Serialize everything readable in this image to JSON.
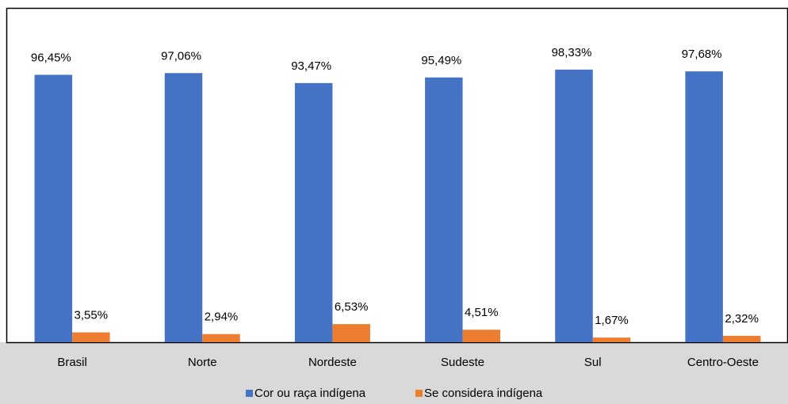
{
  "chart_data": {
    "type": "bar",
    "categories": [
      "Brasil",
      "Norte",
      "Nordeste",
      "Sudeste",
      "Sul",
      "Centro-Oeste"
    ],
    "series": [
      {
        "name": "Cor ou raça indígena",
        "color": "#4472c4",
        "values": [
          96.45,
          97.06,
          93.47,
          95.49,
          98.33,
          97.68
        ],
        "value_labels": [
          "96,45%",
          "97,06%",
          "93,47%",
          "95,49%",
          "98,33%",
          "97,68%"
        ]
      },
      {
        "name": "Se considera indígena",
        "color": "#ed7d31",
        "values": [
          3.55,
          2.94,
          6.53,
          4.51,
          1.67,
          2.32
        ],
        "value_labels": [
          "3,55%",
          "2,94%",
          "6,53%",
          "4,51%",
          "1,67%",
          "2,32%"
        ]
      }
    ],
    "legend": "bottom"
  }
}
